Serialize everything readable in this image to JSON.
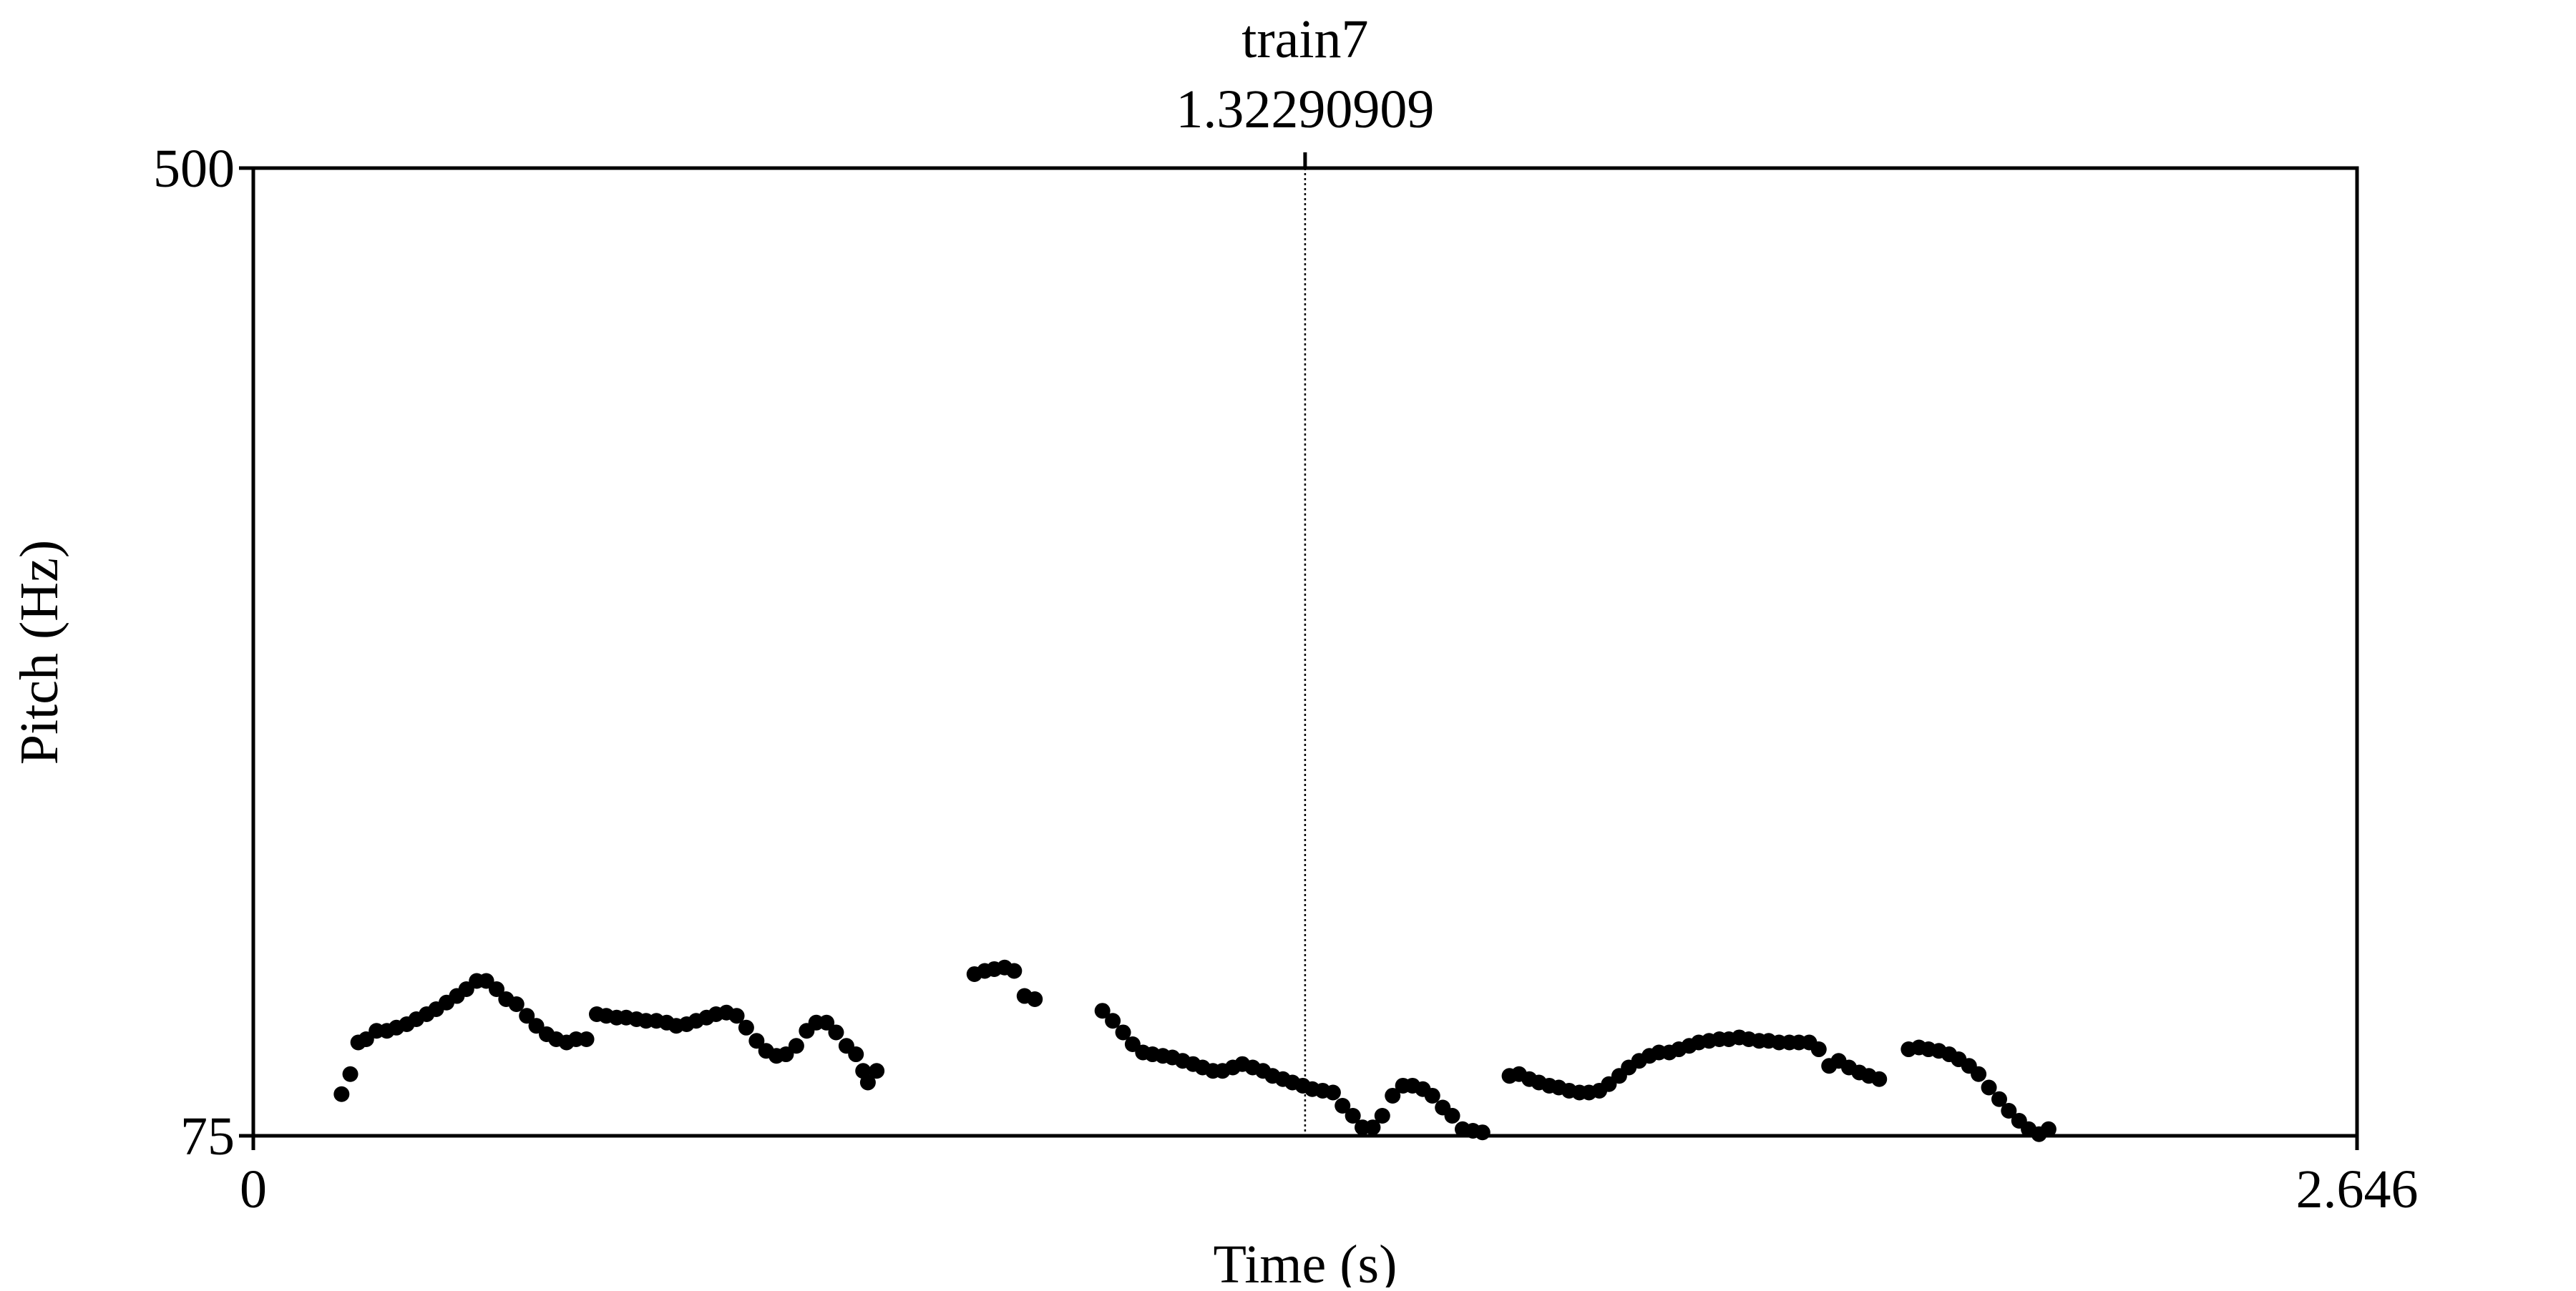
{
  "chart_data": {
    "type": "scatter",
    "xlabel": "Time (s)",
    "ylabel": "Pitch (Hz)",
    "color": "#000000",
    "cursor": {
      "label": "train7",
      "value": 1.32290909
    },
    "xlim": [
      0,
      2.646
    ],
    "xticks": [
      0,
      2.646
    ],
    "ylim": [
      75,
      500
    ],
    "yticks": [
      75,
      500
    ],
    "x": [
      0.111,
      0.122,
      0.132,
      0.142,
      0.155,
      0.168,
      0.18,
      0.193,
      0.205,
      0.218,
      0.23,
      0.243,
      0.256,
      0.268,
      0.281,
      0.293,
      0.306,
      0.318,
      0.331,
      0.344,
      0.356,
      0.369,
      0.381,
      0.394,
      0.406,
      0.419,
      0.432,
      0.444,
      0.457,
      0.469,
      0.482,
      0.494,
      0.507,
      0.52,
      0.532,
      0.545,
      0.557,
      0.57,
      0.582,
      0.595,
      0.608,
      0.62,
      0.633,
      0.645,
      0.658,
      0.67,
      0.683,
      0.696,
      0.708,
      0.721,
      0.733,
      0.746,
      0.758,
      0.767,
      0.773,
      0.784,
      0.907,
      0.92,
      0.932,
      0.945,
      0.957,
      0.97,
      0.983,
      1.068,
      1.081,
      1.094,
      1.106,
      1.119,
      1.131,
      1.144,
      1.156,
      1.169,
      1.182,
      1.194,
      1.207,
      1.219,
      1.232,
      1.244,
      1.257,
      1.27,
      1.282,
      1.295,
      1.307,
      1.32,
      1.332,
      1.345,
      1.358,
      1.37,
      1.383,
      1.395,
      1.408,
      1.42,
      1.433,
      1.446,
      1.458,
      1.471,
      1.483,
      1.496,
      1.508,
      1.521,
      1.534,
      1.546,
      1.58,
      1.592,
      1.605,
      1.617,
      1.63,
      1.642,
      1.655,
      1.668,
      1.68,
      1.693,
      1.705,
      1.718,
      1.73,
      1.743,
      1.756,
      1.768,
      1.781,
      1.793,
      1.806,
      1.818,
      1.831,
      1.844,
      1.856,
      1.869,
      1.881,
      1.894,
      1.906,
      1.919,
      1.932,
      1.944,
      1.957,
      1.969,
      1.982,
      1.994,
      2.007,
      2.02,
      2.032,
      2.045,
      2.082,
      2.095,
      2.107,
      2.12,
      2.133,
      2.145,
      2.158,
      2.17,
      2.183,
      2.196,
      2.208,
      2.221,
      2.233,
      2.246,
      2.258
    ],
    "values": [
      93.3,
      102.1,
      116.0,
      117.4,
      121.1,
      121.1,
      122.5,
      124.0,
      126.2,
      128.4,
      130.6,
      133.5,
      136.4,
      139.4,
      143.0,
      143.0,
      139.4,
      135.0,
      132.8,
      127.7,
      123.3,
      119.6,
      117.4,
      116.0,
      117.4,
      117.4,
      128.4,
      127.7,
      126.9,
      126.9,
      126.2,
      125.5,
      125.5,
      124.7,
      123.3,
      124.0,
      125.5,
      126.9,
      128.4,
      129.1,
      127.7,
      122.5,
      116.7,
      112.3,
      110.1,
      110.8,
      114.5,
      121.1,
      124.7,
      124.7,
      120.4,
      114.5,
      110.8,
      103.5,
      98.4,
      103.5,
      146.0,
      147.4,
      148.2,
      148.9,
      147.4,
      136.4,
      135.0,
      129.9,
      125.5,
      120.4,
      115.2,
      111.6,
      110.8,
      110.1,
      109.4,
      107.9,
      106.5,
      105.0,
      103.5,
      103.5,
      105.0,
      106.5,
      105.0,
      103.5,
      101.3,
      99.9,
      98.4,
      97.0,
      95.5,
      94.8,
      94.0,
      88.2,
      83.8,
      78.7,
      78.7,
      83.8,
      92.6,
      97.0,
      97.0,
      95.5,
      92.6,
      87.4,
      83.8,
      77.9,
      77.2,
      76.5,
      101.3,
      102.1,
      99.9,
      98.4,
      97.0,
      96.2,
      94.8,
      94.0,
      94.0,
      94.8,
      97.7,
      101.3,
      105.0,
      107.9,
      110.1,
      111.6,
      111.6,
      113.0,
      114.5,
      116.0,
      116.7,
      117.4,
      117.4,
      118.2,
      117.4,
      116.7,
      116.7,
      116.0,
      116.0,
      116.0,
      116.0,
      113.0,
      105.7,
      107.9,
      105.0,
      102.8,
      101.3,
      99.9,
      113.0,
      113.8,
      113.0,
      112.3,
      110.8,
      108.6,
      105.7,
      102.1,
      96.2,
      91.1,
      86.0,
      81.6,
      77.9,
      75.7,
      77.9
    ]
  }
}
